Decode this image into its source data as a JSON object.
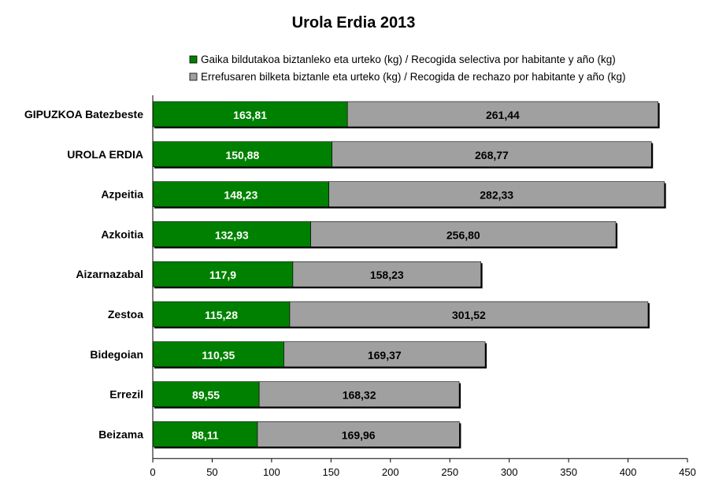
{
  "chart_data": {
    "type": "bar",
    "stacked": true,
    "orientation": "horizontal",
    "title": "Urola Erdia 2013",
    "categories": [
      "GIPUZKOA Batezbeste",
      "UROLA ERDIA",
      "Azpeitia",
      "Azkoitia",
      "Aizarnazabal",
      "Zestoa",
      "Bidegoian",
      "Errezil",
      "Beizama"
    ],
    "series": [
      {
        "name": "Gaika bildutakoa biztanleko eta urteko (kg) / Recogida selectiva por habitante y año (kg)",
        "color": "#008000",
        "values": [
          163.81,
          150.88,
          148.23,
          132.93,
          117.9,
          115.28,
          110.35,
          89.55,
          88.11
        ],
        "labels": [
          "163,81",
          "150,88",
          "148,23",
          "132,93",
          "117,9",
          "115,28",
          "110,35",
          "89,55",
          "88,11"
        ]
      },
      {
        "name": "Errefusaren bilketa biztanle eta urteko (kg) / Recogida de rechazo por habitante y año (kg)",
        "color": "#a0a0a0",
        "values": [
          261.44,
          268.77,
          282.33,
          256.8,
          158.23,
          301.52,
          169.37,
          168.32,
          169.96
        ],
        "labels": [
          "261,44",
          "268,77",
          "282,33",
          "256,80",
          "158,23",
          "301,52",
          "169,37",
          "168,32",
          "169,96"
        ]
      }
    ],
    "xlim": [
      0,
      450
    ],
    "xticks": [
      0,
      50,
      100,
      150,
      200,
      250,
      300,
      350,
      400,
      450
    ],
    "grid": false,
    "legend_position": "top"
  }
}
